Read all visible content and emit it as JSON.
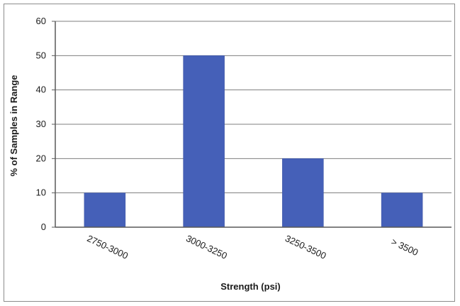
{
  "chart_data": {
    "type": "bar",
    "categories": [
      "2750-3000",
      "3000-3250",
      "3250-3500",
      "> 3500"
    ],
    "series": [
      {
        "values": [
          10,
          50,
          20,
          10
        ]
      }
    ],
    "title": "",
    "xlabel": "Strength (psi)",
    "ylabel": "% of Samples in Range",
    "ylim": [
      0,
      60
    ],
    "yticks": [
      0,
      10,
      20,
      30,
      40,
      50,
      60
    ],
    "grid": true,
    "legend": "none",
    "colors": {
      "bar": "#4560b8",
      "grid": "#7f7f7f",
      "axis": "#595959"
    }
  }
}
